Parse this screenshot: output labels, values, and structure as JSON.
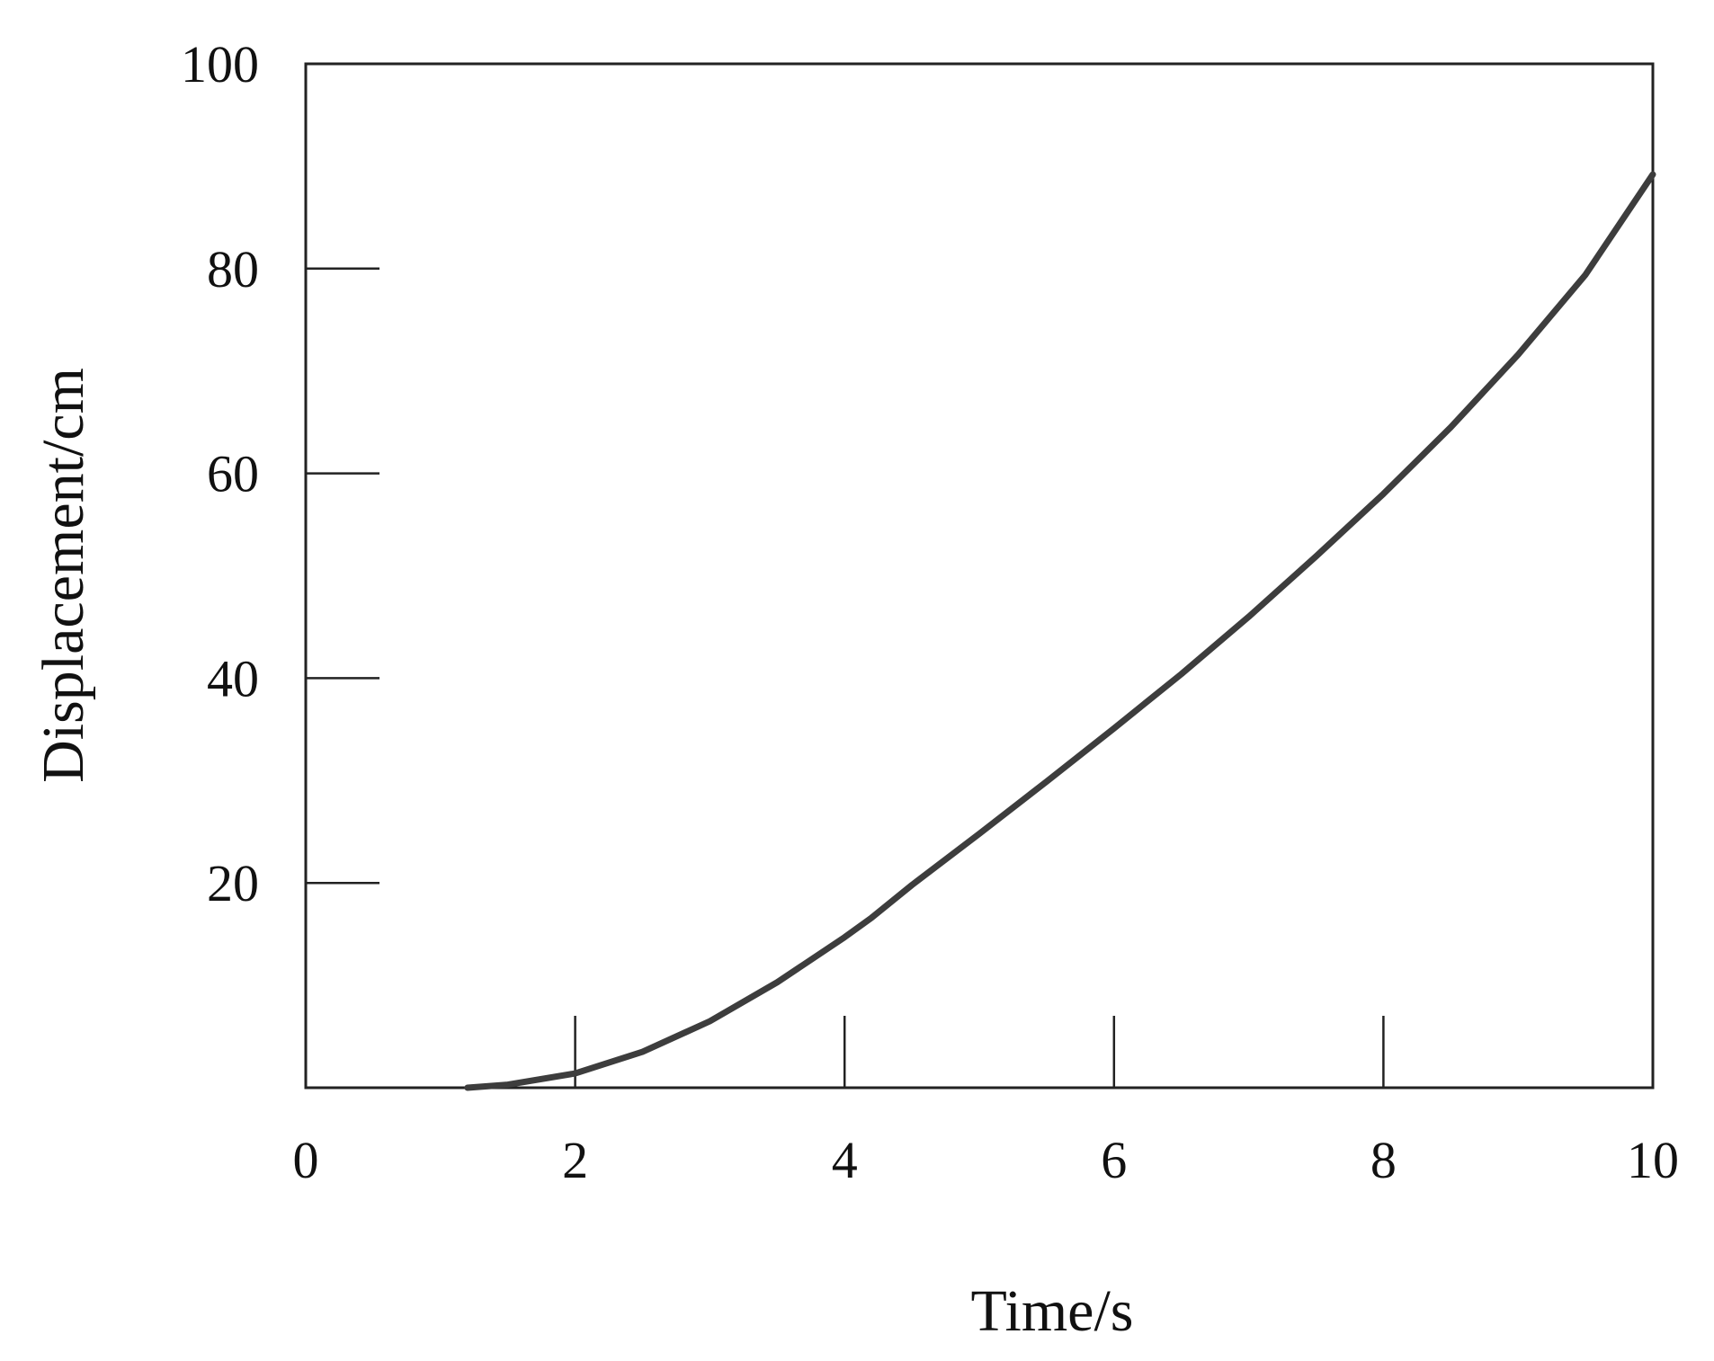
{
  "chart_data": {
    "type": "line",
    "title": "",
    "xlabel": "Time/s",
    "ylabel": "Displacement/cm",
    "xlim": [
      0,
      10
    ],
    "ylim": [
      0,
      100
    ],
    "xticks": [
      "0",
      "2",
      "4",
      "6",
      "8",
      "10"
    ],
    "yticks": [
      "20",
      "40",
      "60",
      "80",
      "100"
    ],
    "x_tick_values": [
      0,
      2,
      4,
      6,
      8,
      10
    ],
    "y_tick_values": [
      20,
      40,
      60,
      80,
      100
    ],
    "grid": false,
    "colors": {
      "line": "#3d3d3d",
      "axis": "#222222"
    },
    "series": [
      {
        "x": [
          1.2,
          1.5,
          2.0,
          2.5,
          3.0,
          3.5,
          4.0,
          4.2,
          4.5,
          5.0,
          5.5,
          6.0,
          6.5,
          7.0,
          7.5,
          8.0,
          8.5,
          9.0,
          9.5,
          10.0
        ],
        "y": [
          0,
          0.3,
          1.4,
          3.5,
          6.5,
          10.3,
          14.7,
          16.6,
          19.8,
          24.8,
          29.9,
          35.1,
          40.4,
          46.0,
          51.9,
          58.0,
          64.5,
          71.6,
          79.4,
          89.2
        ]
      }
    ]
  }
}
